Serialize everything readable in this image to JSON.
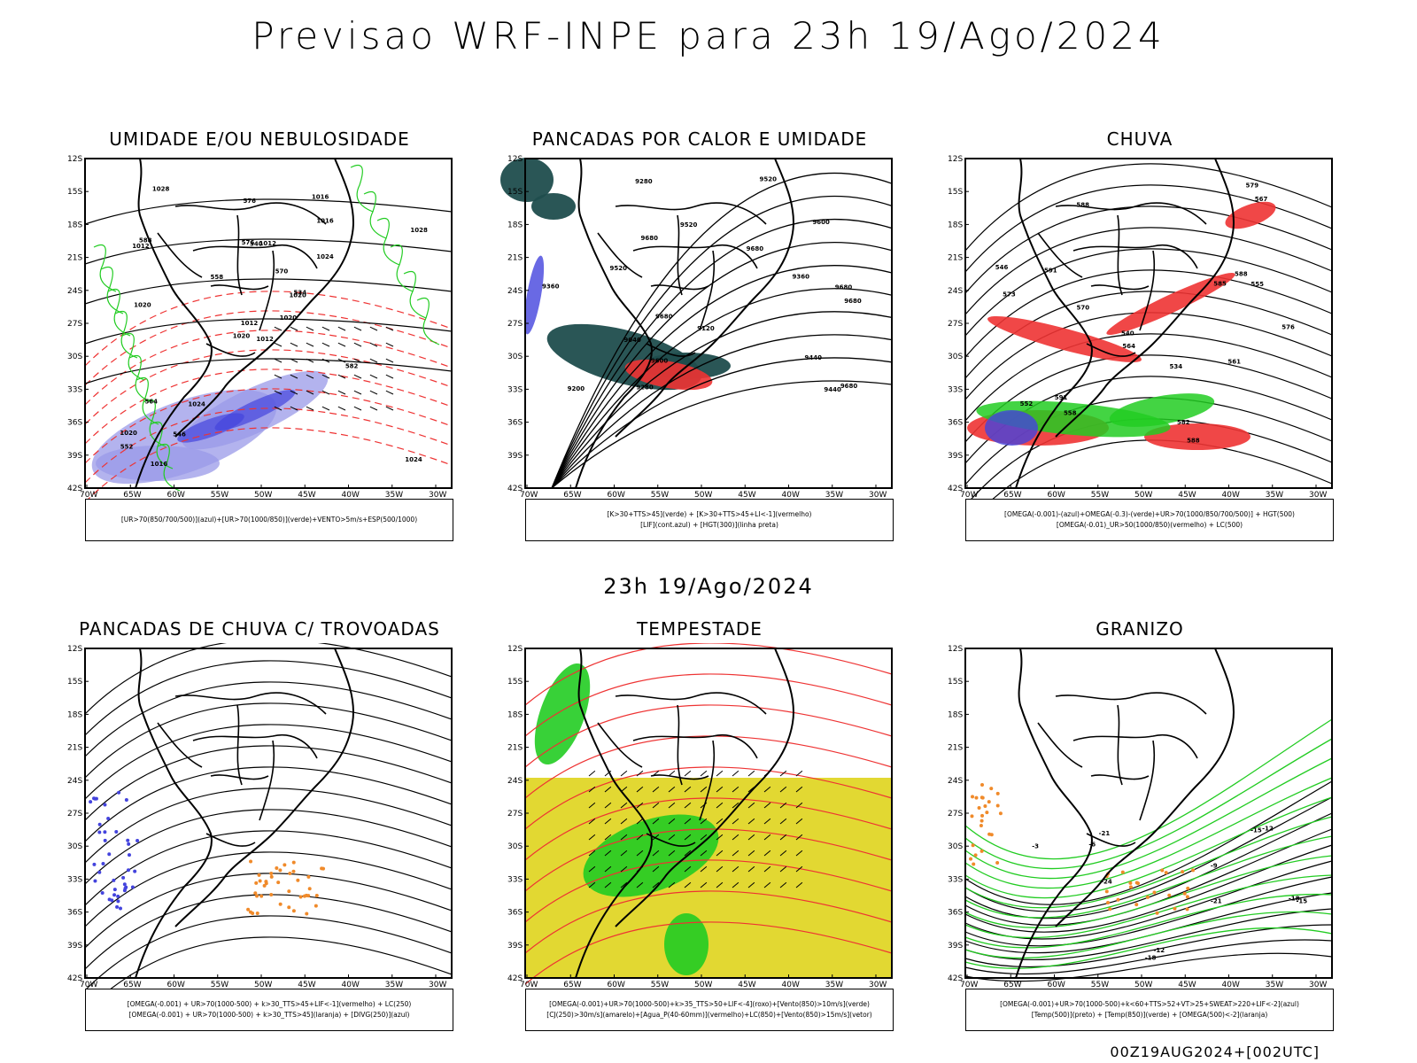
{
  "main_title": "Previsao WRF-INPE  para 23h 19/Ago/2024",
  "mid_title": "23h 19/Ago/2024",
  "footer": "00Z19AUG2024+[002UTC]",
  "axes": {
    "lat_labels": [
      "12S",
      "15S",
      "18S",
      "21S",
      "24S",
      "27S",
      "30S",
      "33S",
      "36S",
      "39S",
      "42S"
    ],
    "lon_labels": [
      "70W",
      "65W",
      "60W",
      "55W",
      "50W",
      "45W",
      "40W",
      "35W",
      "30W"
    ]
  },
  "panels": [
    {
      "title": "UMIDADE E/OU NEBULOSIDADE",
      "legend": [
        "[UR>70(850/700/500)](azul)+[UR>70(1000/850)](verde)+VENTO>5m/s+ESP(500/1000)"
      ],
      "contour_labels": [
        "1012",
        "1012",
        "1012",
        "1020",
        "1020",
        "1024",
        "1016",
        "1012",
        "1016",
        "1020",
        "1028",
        "1024",
        "1020",
        "1028",
        "1020",
        "1024",
        "1016",
        "576",
        "570",
        "564",
        "558",
        "552",
        "546",
        "540",
        "534",
        "582",
        "588",
        "576"
      ]
    },
    {
      "title": "PANCADAS POR CALOR E UMIDADE",
      "legend": [
        "[K>30+TTS>45](verde) + [K>30+TTS>45+LI<-1](vermelho)",
        "[LIF](cont.azul) + [HGT(300)](linha preta)"
      ],
      "contour_labels": [
        "9680",
        "9680",
        "9680",
        "9680",
        "9680",
        "9680",
        "9600",
        "9520",
        "9440",
        "9600",
        "9520",
        "9440",
        "9360",
        "9280",
        "9200",
        "9120",
        "9040",
        "9360",
        "9280",
        "9520"
      ]
    },
    {
      "title": "CHUVA",
      "legend": [
        "[OMEGA(-0.001)-(azul)+OMEGA(-0.3)-(verde)+UR>70(1000/850/700/500)] + HGT(500)",
        "[OMEGA(-0.01)_UR>50(1000/850)(vermelho) + LC(500)"
      ],
      "contour_labels": [
        "588",
        "588",
        "591",
        "591",
        "588",
        "582",
        "576",
        "570",
        "564",
        "558",
        "552",
        "546",
        "540",
        "534",
        "585",
        "579",
        "573",
        "567",
        "561",
        "555"
      ]
    },
    {
      "title": "PANCADAS DE CHUVA C/ TROVOADAS",
      "legend": [
        "[OMEGA(-0.001) + UR>70(1000-500) + k>30_TTS>45+LIF<-1](vermelho) + LC(250)",
        "[OMEGA(-0.001) + UR>70(1000-500) + k>30_TTS>45](laranja) + [DIVG(250)](azul)"
      ],
      "contour_labels": []
    },
    {
      "title": "TEMPESTADE",
      "legend": [
        "[OMEGA(-0.001)+UR>70(1000-500)+k>35_TTS>50+LIF<-4](roxo)+[Vento(850)>10m/s](verde)",
        "[CJ(250)>30m/s](amarelo)+[Agua_P(40-60mm)](vermelho)+LC(850)+[Vento(850)>15m/s](vetor)"
      ],
      "contour_labels": []
    },
    {
      "title": "GRANIZO",
      "legend": [
        "[OMEGA(-0.001)+UR>70(1000-500)+k<60+TTS>52+VT>25+SWEAT>220+LIF<-2](azul)",
        "[Temp(500)](preto) + [Temp(850)](verde) + [OMEGA(500)<-2](laranja)"
      ],
      "contour_labels": [
        "-3",
        "-6",
        "-9",
        "-12",
        "-15",
        "-18",
        "-21",
        "-24",
        "-12",
        "-15",
        "-18",
        "-21"
      ]
    }
  ],
  "colors": {
    "blue_humidity": "#9a9ae8",
    "blue_strong": "#4444dd",
    "green": "#22cc22",
    "red": "#ee3333",
    "dark_teal": "#1f4d4d",
    "yellow": "#e2d832",
    "orange": "#f08a2a"
  }
}
